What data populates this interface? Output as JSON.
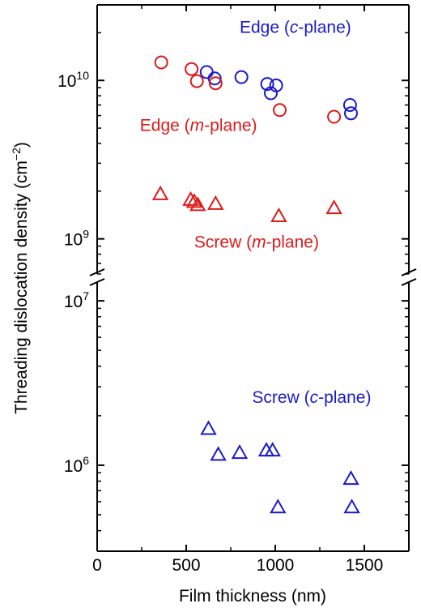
{
  "chart_data": {
    "type": "scatter",
    "xlabel": "Film thickness (nm)",
    "ylabel_main": "Threading dislocation density (cm",
    "ylabel_sup": "−2",
    "ylabel_close": ")",
    "xlim": [
      0,
      1750
    ],
    "x_ticks": [
      {
        "value": 0,
        "label": "0"
      },
      {
        "value": 500,
        "label": "500"
      },
      {
        "value": 1000,
        "label": "1000"
      },
      {
        "value": 1500,
        "label": "1500"
      }
    ],
    "y_scale": "log",
    "y_break": true,
    "upper_panel": {
      "ylim": [
        600000000.0,
        30000000000.0
      ],
      "y_ticks": [
        {
          "value": 1000000000.0,
          "base": "10",
          "exp": "9"
        },
        {
          "value": 10000000000.0,
          "base": "10",
          "exp": "10"
        }
      ]
    },
    "lower_panel": {
      "ylim": [
        300000.0,
        13000000.0
      ],
      "y_ticks": [
        {
          "value": 1000000.0,
          "base": "10",
          "exp": "6"
        },
        {
          "value": 10000000.0,
          "base": "10",
          "exp": "7"
        }
      ]
    },
    "series": [
      {
        "key": "edge_c",
        "panel": "upper",
        "marker": "circle",
        "color": "#1a1acc",
        "label_pre": "Edge (",
        "label_it": "c",
        "label_post": "-plane)",
        "label_at": [
          800,
          20000000000.0
        ],
        "points": [
          [
            615,
            11300000000.0
          ],
          [
            660,
            10300000000.0
          ],
          [
            810,
            10500000000.0
          ],
          [
            955,
            9500000000.0
          ],
          [
            975,
            8300000000.0
          ],
          [
            1005,
            9300000000.0
          ],
          [
            1420,
            7000000000.0
          ],
          [
            1425,
            6200000000.0
          ]
        ]
      },
      {
        "key": "edge_m",
        "panel": "upper",
        "marker": "circle",
        "color": "#dd1a1a",
        "label_pre": "Edge (",
        "label_it": "m",
        "label_post": "-plane)",
        "label_at": [
          240,
          4800000000.0
        ],
        "points": [
          [
            360,
            13000000000.0
          ],
          [
            530,
            11800000000.0
          ],
          [
            560,
            9900000000.0
          ],
          [
            665,
            9600000000.0
          ],
          [
            1025,
            6500000000.0
          ],
          [
            1330,
            5900000000.0
          ]
        ]
      },
      {
        "key": "screw_m",
        "panel": "upper",
        "marker": "triangle",
        "color": "#dd1a1a",
        "label_pre": "Screw (",
        "label_it": "m",
        "label_post": "-plane)",
        "label_at": [
          545,
          880000000.0
        ],
        "points": [
          [
            355,
            1900000000.0
          ],
          [
            525,
            1750000000.0
          ],
          [
            545,
            1700000000.0
          ],
          [
            565,
            1620000000.0
          ],
          [
            665,
            1650000000.0
          ],
          [
            1020,
            1380000000.0
          ],
          [
            1330,
            1550000000.0
          ]
        ]
      },
      {
        "key": "screw_c",
        "panel": "lower",
        "marker": "triangle",
        "color": "#1a1acc",
        "label_pre": "Screw (",
        "label_it": "c",
        "label_post": "-plane)",
        "label_at": [
          870,
          2400000.0
        ],
        "points": [
          [
            625,
            1650000.0
          ],
          [
            680,
            1150000.0
          ],
          [
            800,
            1180000.0
          ],
          [
            950,
            1220000.0
          ],
          [
            985,
            1220000.0
          ],
          [
            1015,
            550000.0
          ],
          [
            1425,
            820000.0
          ],
          [
            1430,
            550000.0
          ]
        ]
      }
    ]
  }
}
